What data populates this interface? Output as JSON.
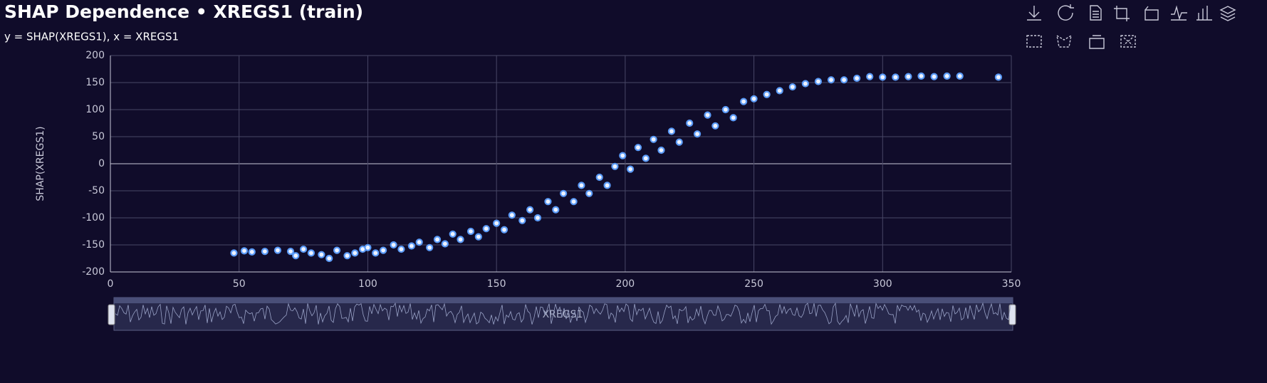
{
  "chart_data": {
    "type": "scatter",
    "title": "SHAP Dependence • XREGS1 (train)",
    "subtitle": "y = SHAP(XREGS1), x = XREGS1",
    "y_label": "SHAP(XREGS1)",
    "datazoom_label": "XREGS1",
    "color": "#5b9bf8",
    "x": [
      48,
      52,
      55,
      60,
      65,
      70,
      72,
      75,
      78,
      82,
      85,
      88,
      92,
      95,
      98,
      100,
      103,
      106,
      110,
      113,
      117,
      120,
      124,
      127,
      130,
      133,
      136,
      140,
      143,
      146,
      150,
      153,
      156,
      160,
      163,
      166,
      170,
      173,
      176,
      180,
      183,
      186,
      190,
      193,
      196,
      199,
      202,
      205,
      208,
      211,
      214,
      218,
      221,
      225,
      228,
      232,
      235,
      239,
      242,
      246,
      250,
      255,
      260,
      265,
      270,
      275,
      280,
      285,
      290,
      295,
      300,
      305,
      310,
      315,
      320,
      325,
      330,
      345
    ],
    "values": [
      -165,
      -161,
      -163,
      -162,
      -160,
      -162,
      -170,
      -158,
      -165,
      -168,
      -175,
      -160,
      -170,
      -165,
      -158,
      -155,
      -165,
      -160,
      -150,
      -158,
      -152,
      -145,
      -155,
      -140,
      -148,
      -130,
      -140,
      -125,
      -135,
      -120,
      -110,
      -122,
      -95,
      -105,
      -85,
      -100,
      -70,
      -85,
      -55,
      -70,
      -40,
      -55,
      -25,
      -40,
      -5,
      15,
      -10,
      30,
      10,
      45,
      25,
      60,
      40,
      75,
      55,
      90,
      70,
      100,
      85,
      115,
      120,
      128,
      135,
      142,
      148,
      152,
      155,
      155,
      158,
      161,
      160,
      160,
      161,
      162,
      161,
      162,
      162,
      160
    ],
    "xlim": [
      0,
      350
    ],
    "xticks": [
      0,
      50,
      100,
      150,
      200,
      250,
      300,
      350
    ],
    "ylim": [
      -200,
      200
    ],
    "yticks": [
      -200,
      -150,
      -100,
      -50,
      0,
      50,
      100,
      150,
      200
    ],
    "grid": true
  }
}
